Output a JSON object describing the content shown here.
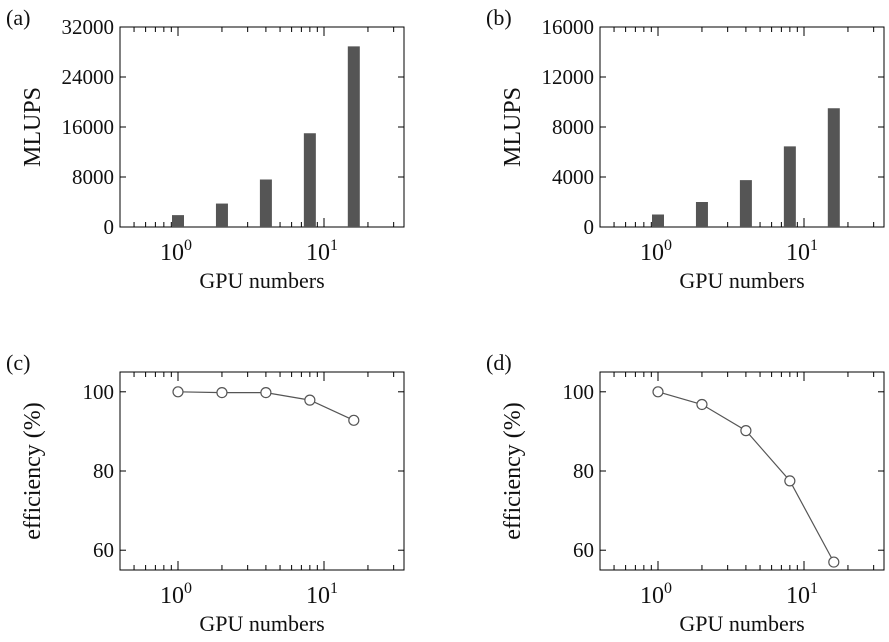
{
  "chart_data": [
    {
      "panel": "(a)",
      "type": "bar",
      "x": [
        1,
        2,
        4,
        8,
        16
      ],
      "values": [
        1900,
        3750,
        7600,
        15000,
        28900
      ],
      "xlabel": "GPU numbers",
      "ylabel": "MLUPS",
      "ylim": [
        0,
        32000
      ],
      "yticks": [
        0,
        8000,
        16000,
        24000,
        32000
      ],
      "xscale": "log",
      "xticks": [
        {
          "base": "10",
          "exp": "0"
        },
        {
          "base": "10",
          "exp": "1"
        }
      ],
      "grid": false,
      "color": "#555555"
    },
    {
      "panel": "(b)",
      "type": "bar",
      "x": [
        1,
        2,
        4,
        8,
        16
      ],
      "values": [
        1000,
        2000,
        3750,
        6450,
        9500
      ],
      "xlabel": "GPU numbers",
      "ylabel": "MLUPS",
      "ylim": [
        0,
        16000
      ],
      "yticks": [
        0,
        4000,
        8000,
        12000,
        16000
      ],
      "xscale": "log",
      "xticks": [
        {
          "base": "10",
          "exp": "0"
        },
        {
          "base": "10",
          "exp": "1"
        }
      ],
      "grid": false,
      "color": "#555555"
    },
    {
      "panel": "(c)",
      "type": "line",
      "x": [
        1,
        2,
        4,
        8,
        16
      ],
      "values": [
        100,
        99.8,
        99.8,
        97.9,
        92.8
      ],
      "xlabel": "GPU numbers",
      "ylabel": "efficiency (%)",
      "ylim": [
        55,
        105
      ],
      "yticks": [
        60,
        80,
        100
      ],
      "xscale": "log",
      "xticks": [
        {
          "base": "10",
          "exp": "0"
        },
        {
          "base": "10",
          "exp": "1"
        }
      ],
      "grid": false,
      "marker": "open-circle",
      "color": "#555555"
    },
    {
      "panel": "(d)",
      "type": "line",
      "x": [
        1,
        2,
        4,
        8,
        16
      ],
      "values": [
        100,
        96.8,
        90.2,
        77.5,
        57
      ],
      "xlabel": "GPU numbers",
      "ylabel": "efficiency (%)",
      "ylim": [
        55,
        105
      ],
      "yticks": [
        60,
        80,
        100
      ],
      "xscale": "log",
      "xticks": [
        {
          "base": "10",
          "exp": "0"
        },
        {
          "base": "10",
          "exp": "1"
        }
      ],
      "grid": false,
      "marker": "open-circle",
      "color": "#555555"
    }
  ]
}
